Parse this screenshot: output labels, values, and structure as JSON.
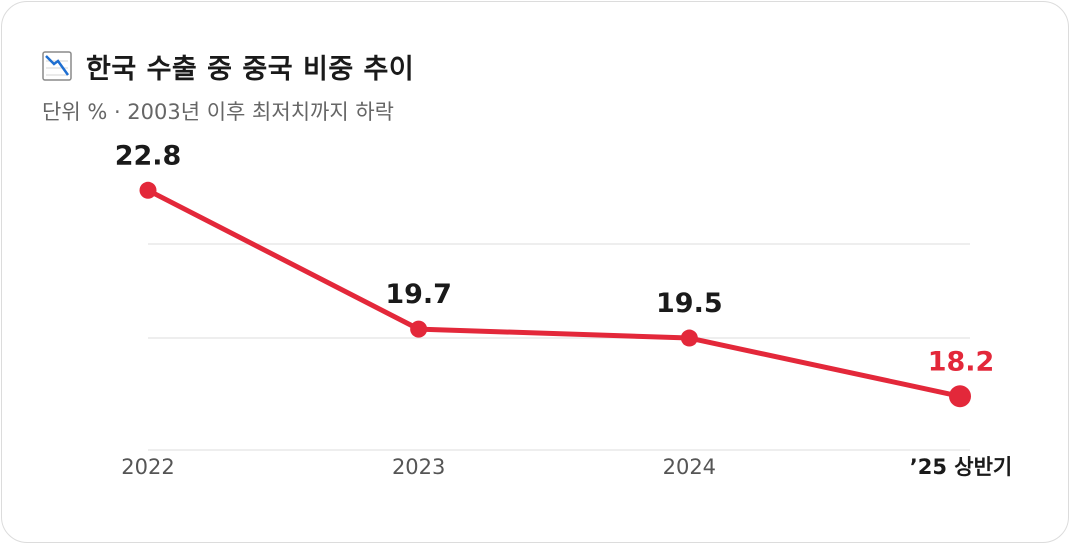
{
  "header": {
    "title": "한국 수출 중 중국 비중 추이",
    "subtitle": "단위 % · 2003년 이후 최저치까지 하락",
    "icon": "chart-decreasing-icon"
  },
  "colors": {
    "line": "#e3283a",
    "text": "#1a1a1a",
    "grid": "#e8e8e8",
    "highlight": "#e3283a"
  },
  "chart_data": {
    "type": "line",
    "title": "한국 수출 중 중국 비중 추이",
    "subtitle": "단위 % · 2003년 이후 최저치까지 하락",
    "categories": [
      "2022",
      "2023",
      "2024",
      "’25 상반기"
    ],
    "series": [
      {
        "values": [
          22.8,
          19.7,
          19.5,
          18.2
        ]
      }
    ],
    "data_labels": [
      "22.8",
      "19.7",
      "19.5",
      "18.2"
    ],
    "highlight_index": 3,
    "ylim": [
      17.0,
      23.7
    ],
    "gridlines": [
      17.0,
      19.5,
      21.6
    ],
    "grid": true,
    "legend": "none"
  }
}
